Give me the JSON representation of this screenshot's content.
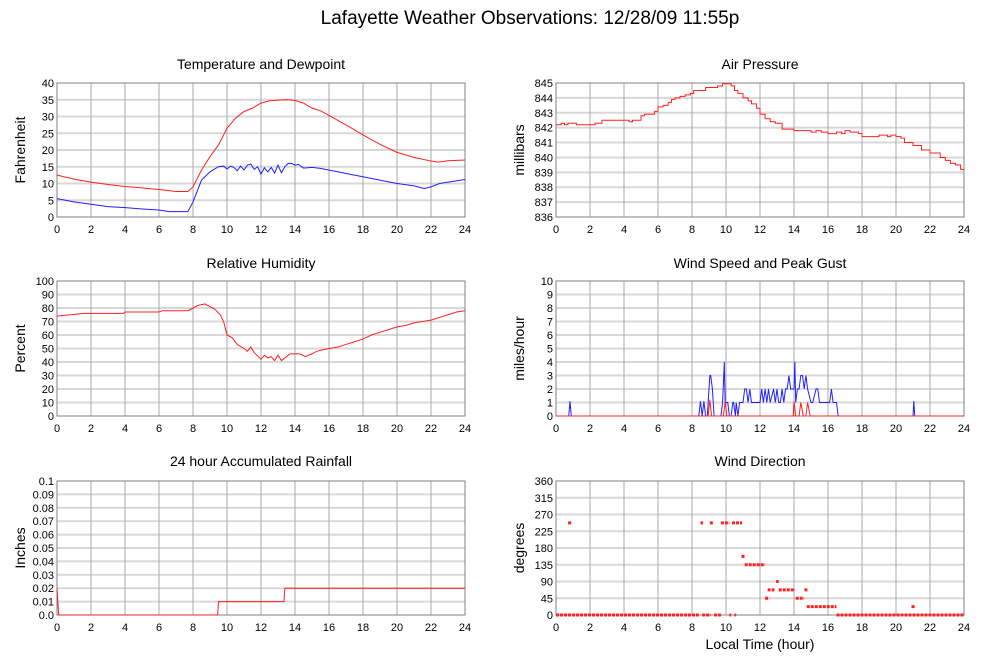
{
  "title": "Lafayette Weather Observations: 12/28/09 11:55p",
  "colors": {
    "red": "#ff2020",
    "blue": "#2020ff",
    "frame": "#808080",
    "hgrid": "#d8d8d8",
    "vgrid": "#a8a8a8"
  },
  "chart_data": [
    {
      "id": "temperature",
      "type": "line",
      "title": "Temperature and Dewpoint",
      "xlabel": "",
      "ylabel": "Fahrenheit",
      "xlim": [
        0,
        24
      ],
      "ylim": [
        0,
        40
      ],
      "xticks": [
        0,
        2,
        4,
        6,
        8,
        10,
        12,
        14,
        16,
        18,
        20,
        22,
        24
      ],
      "yticks": [
        0,
        5,
        10,
        15,
        20,
        25,
        30,
        35,
        40
      ],
      "ytick_labels": [
        "0",
        "5",
        "10",
        "15",
        "20",
        "25",
        "30",
        "35",
        "40"
      ],
      "grid": true,
      "series": [
        {
          "name": "Temperature",
          "color": "red",
          "x": [
            0,
            1,
            2,
            3,
            4,
            5,
            6,
            7,
            7.7,
            8,
            8.5,
            9,
            9.5,
            10,
            10.5,
            11,
            11.5,
            12,
            12.5,
            13,
            13.5,
            14,
            14.5,
            15,
            15.5,
            16,
            17,
            18,
            19,
            20,
            21,
            22,
            22.4,
            23,
            24
          ],
          "y": [
            12.5,
            11.3,
            10.4,
            9.7,
            9.1,
            8.7,
            8.2,
            7.6,
            7.6,
            9,
            14,
            18,
            21.5,
            26.5,
            29.5,
            31.5,
            32.5,
            34,
            34.7,
            34.9,
            35,
            34.8,
            34,
            32.5,
            31.7,
            30.3,
            27.5,
            24.5,
            21.7,
            19.3,
            17.8,
            16.7,
            16.4,
            16.8,
            17
          ]
        },
        {
          "name": "Dewpoint",
          "color": "blue",
          "x": [
            0,
            1,
            2,
            3,
            4,
            5,
            6,
            6.6,
            7.7,
            8,
            8.5,
            9,
            9.5,
            9.8,
            10,
            10.2,
            10.4,
            10.6,
            10.8,
            11,
            11.2,
            11.4,
            11.6,
            11.8,
            12,
            12.2,
            12.4,
            12.6,
            12.8,
            13,
            13.2,
            13.4,
            13.6,
            13.8,
            14,
            14.2,
            14.5,
            15,
            15.5,
            16,
            16.5,
            17,
            18,
            19,
            20,
            21,
            21.6,
            22,
            22.5,
            23,
            24
          ],
          "y": [
            5.5,
            4.5,
            3.8,
            3.1,
            2.8,
            2.4,
            2.1,
            1.6,
            1.6,
            4.5,
            11,
            13.5,
            15,
            15.2,
            14.3,
            15.2,
            14.8,
            13.8,
            15.2,
            14,
            15.5,
            15.8,
            14.2,
            15,
            12.8,
            14.7,
            13.5,
            14.8,
            13.1,
            15.5,
            13.2,
            15,
            16,
            16,
            15.5,
            15.7,
            14.6,
            14.8,
            14.5,
            14,
            13.5,
            13,
            12,
            11,
            10,
            9.3,
            8.5,
            9,
            10,
            10.4,
            11.2
          ]
        }
      ]
    },
    {
      "id": "pressure",
      "type": "line",
      "title": "Air Pressure",
      "xlabel": "",
      "ylabel": "millibars",
      "xlim": [
        0,
        24
      ],
      "ylim": [
        836,
        845
      ],
      "xticks": [
        0,
        2,
        4,
        6,
        8,
        10,
        12,
        14,
        16,
        18,
        20,
        22,
        24
      ],
      "yticks": [
        836,
        837,
        838,
        839,
        840,
        841,
        842,
        843,
        844,
        845
      ],
      "ytick_labels": [
        "836",
        "837",
        "838",
        "839",
        "840",
        "841",
        "842",
        "843",
        "844",
        "845"
      ],
      "grid": true,
      "series": [
        {
          "name": "Pressure",
          "color": "red",
          "step": true,
          "x": [
            0,
            0.3,
            0.5,
            0.7,
            1.2,
            2.0,
            2.3,
            2.7,
            4.3,
            4.5,
            5.0,
            5.2,
            5.8,
            6.0,
            6.3,
            6.6,
            6.8,
            7.0,
            7.3,
            7.6,
            7.9,
            8.1,
            8.8,
            9.5,
            9.8,
            10.3,
            10.5,
            10.7,
            11.0,
            11.3,
            11.5,
            11.8,
            12.0,
            12.3,
            12.6,
            12.9,
            13.3,
            14.0,
            15.0,
            15.3,
            15.6,
            16.0,
            16.5,
            16.8,
            17.0,
            17.3,
            17.8,
            18.0,
            18.5,
            19.0,
            19.5,
            19.7,
            20.0,
            20.3,
            20.5,
            21.0,
            21.5,
            22.0,
            22.3,
            22.6,
            22.9,
            23.2,
            23.5,
            23.8,
            24.0
          ],
          "y": [
            842.2,
            842.3,
            842.2,
            842.3,
            842.2,
            842.2,
            842.3,
            842.5,
            842.4,
            842.5,
            842.8,
            842.9,
            843.1,
            843.4,
            843.5,
            843.7,
            843.9,
            844.0,
            844.1,
            844.2,
            844.3,
            844.5,
            844.7,
            844.8,
            844.95,
            844.8,
            844.5,
            844.3,
            844.0,
            843.8,
            843.6,
            843.3,
            842.9,
            842.6,
            842.4,
            842.3,
            841.9,
            841.8,
            841.7,
            841.8,
            841.7,
            841.6,
            841.7,
            841.6,
            841.8,
            841.7,
            841.6,
            841.4,
            841.4,
            841.5,
            841.4,
            841.5,
            841.4,
            841.3,
            841.0,
            840.8,
            840.5,
            840.3,
            840.3,
            840.0,
            839.8,
            839.6,
            839.5,
            839.2,
            839.2
          ]
        }
      ]
    },
    {
      "id": "humidity",
      "type": "line",
      "title": "Relative Humidity",
      "xlabel": "",
      "ylabel": "Percent",
      "xlim": [
        0,
        24
      ],
      "ylim": [
        0,
        100
      ],
      "xticks": [
        0,
        2,
        4,
        6,
        8,
        10,
        12,
        14,
        16,
        18,
        20,
        22,
        24
      ],
      "yticks": [
        0,
        10,
        20,
        30,
        40,
        50,
        60,
        70,
        80,
        90,
        100
      ],
      "ytick_labels": [
        "0",
        "10",
        "20",
        "30",
        "40",
        "50",
        "60",
        "70",
        "80",
        "90",
        "100"
      ],
      "grid": true,
      "series": [
        {
          "name": "Relative Humidity",
          "color": "red",
          "x": [
            0,
            0.8,
            1.6,
            3.9,
            4.0,
            6.0,
            6.2,
            7.7,
            8.0,
            8.3,
            8.7,
            9.0,
            9.3,
            9.6,
            9.8,
            10.0,
            10.3,
            10.6,
            11.0,
            11.2,
            11.4,
            11.6,
            12.0,
            12.2,
            12.4,
            12.6,
            12.8,
            13.0,
            13.2,
            13.4,
            13.7,
            14.0,
            14.3,
            14.6,
            15.0,
            15.3,
            15.6,
            16.0,
            16.5,
            17.0,
            17.5,
            18.0,
            18.5,
            19.0,
            19.5,
            20.0,
            20.5,
            21.0,
            21.5,
            22.0,
            22.5,
            23.0,
            23.5,
            24.0
          ],
          "y": [
            74,
            75,
            76,
            76,
            77,
            77,
            78,
            78,
            80,
            82,
            83,
            81,
            79,
            75,
            70,
            60,
            58,
            53,
            50,
            48,
            51,
            47,
            42,
            45,
            43,
            44,
            41,
            45,
            41,
            43,
            46,
            46,
            46,
            44,
            46,
            48,
            49,
            50,
            51,
            53,
            55,
            57,
            60,
            62,
            64,
            66,
            67,
            69,
            70,
            71,
            73,
            75,
            77,
            78
          ]
        }
      ]
    },
    {
      "id": "wind_speed",
      "type": "line",
      "title": "Wind Speed and Peak Gust",
      "xlabel": "",
      "ylabel": "miles/hour",
      "xlim": [
        0,
        24
      ],
      "ylim": [
        0,
        10
      ],
      "xticks": [
        0,
        2,
        4,
        6,
        8,
        10,
        12,
        14,
        16,
        18,
        20,
        22,
        24
      ],
      "yticks": [
        0,
        1,
        2,
        3,
        4,
        5,
        6,
        7,
        8,
        9,
        10
      ],
      "ytick_labels": [
        "0",
        "1",
        "2",
        "3",
        "4",
        "5",
        "6",
        "7",
        "8",
        "9",
        "10"
      ],
      "grid": true,
      "series": [
        {
          "name": "Wind Speed",
          "color": "blue",
          "x": [
            0,
            0.75,
            0.82,
            0.9,
            8.4,
            8.5,
            8.6,
            8.7,
            8.8,
            8.9,
            9.05,
            9.1,
            9.2,
            9.3,
            9.4,
            9.7,
            9.8,
            9.9,
            9.95,
            10.05,
            10.1,
            10.2,
            10.3,
            10.4,
            10.45,
            10.55,
            10.6,
            10.7,
            10.8,
            11.0,
            11.1,
            11.2,
            11.3,
            11.4,
            11.5,
            11.6,
            12.0,
            12.1,
            12.2,
            12.3,
            12.4,
            12.5,
            12.6,
            12.8,
            12.9,
            13.0,
            13.1,
            13.2,
            13.3,
            13.4,
            13.5,
            13.6,
            13.7,
            13.8,
            14.0,
            14.05,
            14.1,
            14.2,
            14.3,
            14.4,
            14.5,
            14.6,
            14.7,
            14.8,
            15.0,
            15.1,
            15.3,
            15.4,
            15.5,
            16.1,
            16.2,
            16.3,
            16.5,
            16.6,
            21.0,
            21.05,
            21.1,
            24
          ],
          "y": [
            0,
            0,
            1.1,
            0,
            0,
            1.1,
            0,
            1.1,
            0,
            0,
            3,
            3,
            2,
            0,
            0,
            0,
            1,
            4,
            1,
            1,
            1,
            0,
            0,
            1,
            1,
            0,
            1,
            0,
            1,
            1,
            2,
            2,
            1,
            2,
            1,
            1,
            1,
            2,
            1,
            2,
            1,
            2,
            1,
            2,
            1,
            2,
            1,
            1,
            2,
            1,
            2,
            2,
            3,
            2,
            2,
            4,
            1,
            2,
            2,
            3,
            3,
            2,
            3,
            2,
            1,
            1,
            2,
            2,
            1,
            1,
            2,
            1,
            1,
            0,
            0,
            1.1,
            0,
            0
          ]
        },
        {
          "name": "Peak Gust",
          "color": "red",
          "x": [
            0,
            8.95,
            9.05,
            9.15,
            9.85,
            9.95,
            10.05,
            13.95,
            14.0,
            14.1,
            14.3,
            14.4,
            14.55,
            14.7,
            14.8,
            14.95,
            24
          ],
          "y": [
            0,
            0,
            1.2,
            0,
            0,
            1.1,
            0,
            0,
            1.1,
            0,
            0,
            1,
            0,
            0,
            1,
            0,
            0
          ]
        }
      ]
    },
    {
      "id": "rainfall",
      "type": "line",
      "title": "24 hour Accumulated Rainfall",
      "xlabel": "",
      "ylabel": "Inches",
      "xlim": [
        0,
        24
      ],
      "ylim": [
        0,
        0.1
      ],
      "xticks": [
        0,
        2,
        4,
        6,
        8,
        10,
        12,
        14,
        16,
        18,
        20,
        22,
        24
      ],
      "yticks": [
        0,
        0.01,
        0.02,
        0.03,
        0.04,
        0.05,
        0.06,
        0.07,
        0.08,
        0.09,
        0.1
      ],
      "ytick_labels": [
        "0.0",
        "0.01",
        "0.02",
        "0.03",
        "0.04",
        "0.05",
        "0.06",
        "0.07",
        "0.08",
        "0.09",
        "0.1"
      ],
      "grid": true,
      "series": [
        {
          "name": "Rainfall",
          "color": "red",
          "x": [
            0,
            0.1,
            9.45,
            9.5,
            13.35,
            13.4,
            24
          ],
          "y": [
            0.02,
            0,
            0,
            0.01,
            0.01,
            0.02,
            0.02
          ]
        }
      ]
    },
    {
      "id": "wind_direction",
      "type": "scatter",
      "title": "Wind Direction",
      "xlabel": "Local Time (hour)",
      "ylabel": "degrees",
      "xlim": [
        0,
        24
      ],
      "ylim": [
        0,
        360
      ],
      "xticks": [
        0,
        2,
        4,
        6,
        8,
        10,
        12,
        14,
        16,
        18,
        20,
        22,
        24
      ],
      "yticks": [
        0,
        45,
        90,
        135,
        180,
        225,
        270,
        315,
        360
      ],
      "ytick_labels": [
        "0",
        "45",
        "90",
        "135",
        "180",
        "225",
        "270",
        "315",
        "360"
      ],
      "grid": true,
      "series": [
        {
          "name": "Direction",
          "color": "red",
          "segments": [
            {
              "x0": 0,
              "x1": 8.4,
              "y": 0
            },
            {
              "x0": 8.6,
              "x1": 9.1,
              "y": 0
            },
            {
              "x0": 9.3,
              "x1": 9.7,
              "y": 0
            },
            {
              "x0": 10.2,
              "x1": 10.3,
              "y": 0
            },
            {
              "x0": 10.5,
              "x1": 10.6,
              "y": 0
            },
            {
              "x0": 8.5,
              "x1": 8.65,
              "y": 247.5
            },
            {
              "x0": 9.05,
              "x1": 9.25,
              "y": 247.5
            },
            {
              "x0": 9.7,
              "x1": 10.2,
              "y": 247.5
            },
            {
              "x0": 10.35,
              "x1": 10.95,
              "y": 247.5
            },
            {
              "x0": 11.1,
              "x1": 12.3,
              "y": 135
            },
            {
              "x0": 12.95,
              "x1": 13.1,
              "y": 90
            },
            {
              "x0": 12.45,
              "x1": 12.85,
              "y": 67.5
            },
            {
              "x0": 13.1,
              "x1": 14.05,
              "y": 67.5
            },
            {
              "x0": 12.3,
              "x1": 12.55,
              "y": 45
            },
            {
              "x0": 14.1,
              "x1": 14.6,
              "y": 45
            },
            {
              "x0": 14.75,
              "x1": 16.5,
              "y": 22.5
            },
            {
              "x0": 16.5,
              "x1": 24,
              "y": 0
            }
          ],
          "points": [
            {
              "x": 0.8,
              "y": 247.5
            },
            {
              "x": 11.0,
              "y": 157.5
            },
            {
              "x": 14.7,
              "y": 67.5
            },
            {
              "x": 21.0,
              "y": 22.5
            }
          ]
        }
      ]
    }
  ]
}
